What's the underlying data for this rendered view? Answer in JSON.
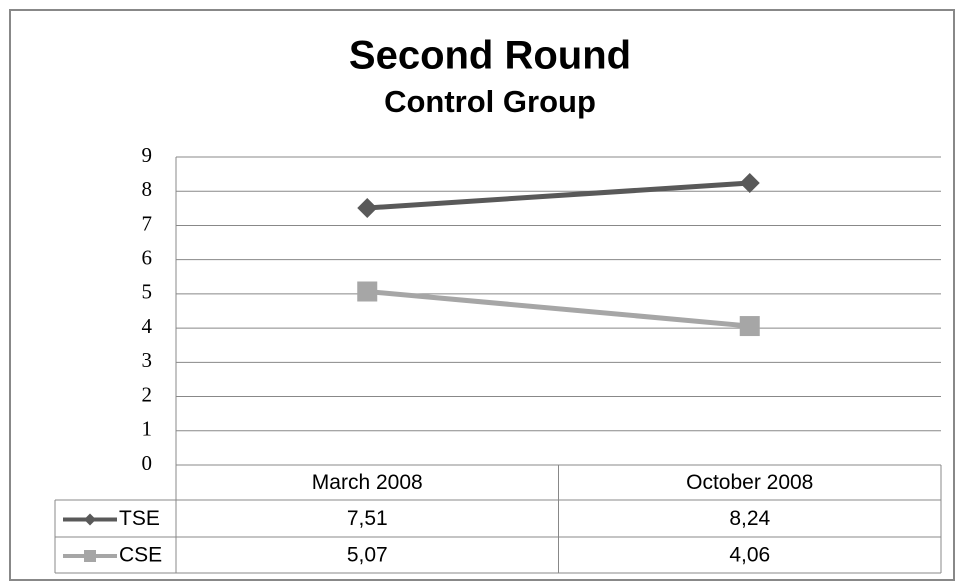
{
  "chart_data": {
    "type": "line",
    "title": "Second Round",
    "subtitle": "Control Group",
    "categories": [
      "March 2008",
      "October 2008"
    ],
    "series": [
      {
        "name": "TSE",
        "color": "#595959",
        "marker": "diamond",
        "values": [
          7.51,
          8.24
        ],
        "value_labels": [
          "7,51",
          "8,24"
        ]
      },
      {
        "name": "CSE",
        "color": "#a6a6a6",
        "marker": "square",
        "values": [
          5.07,
          4.06
        ],
        "value_labels": [
          "5,07",
          "4,06"
        ]
      }
    ],
    "ylim": [
      0,
      9
    ],
    "yticks": [
      0,
      1,
      2,
      3,
      4,
      5,
      6,
      7,
      8,
      9
    ],
    "grid": true
  }
}
